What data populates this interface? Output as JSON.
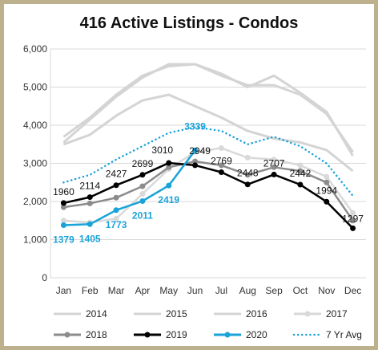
{
  "chart_data": {
    "type": "line",
    "title": "416 Active Listings - Condos",
    "xlabel": "",
    "ylabel": "",
    "categories": [
      "Jan",
      "Feb",
      "Mar",
      "Apr",
      "May",
      "Jun",
      "Jul",
      "Aug",
      "Sep",
      "Oct",
      "Nov",
      "Dec"
    ],
    "ylim": [
      0,
      6000
    ],
    "yticks": [
      0,
      1000,
      2000,
      3000,
      4000,
      5000,
      6000
    ],
    "ytick_labels": [
      "0",
      "1,000",
      "2,000",
      "3,000",
      "4,000",
      "5,000",
      "6,000"
    ],
    "grid": true,
    "legend_position": "bottom",
    "series": [
      {
        "name": "2014",
        "color": "#d4d4d4",
        "style": "solid",
        "markers": false,
        "values": [
          3500,
          3750,
          4250,
          4650,
          4800,
          4500,
          4200,
          3850,
          3650,
          3550,
          3350,
          2800
        ]
      },
      {
        "name": "2015",
        "color": "#d4d4d4",
        "style": "solid",
        "markers": false,
        "values": [
          3700,
          4200,
          4800,
          5300,
          5550,
          5600,
          5300,
          5050,
          5050,
          4800,
          4300,
          3300
        ]
      },
      {
        "name": "2016",
        "color": "#d4d4d4",
        "style": "solid",
        "markers": false,
        "values": [
          3550,
          4150,
          4750,
          5250,
          5600,
          5600,
          5350,
          5000,
          5300,
          4850,
          4350,
          3200
        ]
      },
      {
        "name": "2017",
        "color": "#d9d9d9",
        "style": "solid",
        "markers": true,
        "values": [
          1500,
          1450,
          1550,
          2200,
          2850,
          3300,
          3400,
          3150,
          3100,
          2950,
          2650,
          1700
        ]
      },
      {
        "name": "2018",
        "color": "#8c8c8c",
        "style": "solid",
        "markers": true,
        "values": [
          1850,
          1950,
          2100,
          2400,
          2900,
          3050,
          2950,
          2700,
          2900,
          2800,
          2500,
          1500
        ]
      },
      {
        "name": "2019",
        "color": "#000000",
        "style": "solid",
        "markers": true,
        "values": [
          1960,
          2114,
          2427,
          2699,
          3010,
          2949,
          2769,
          2448,
          2707,
          2442,
          1994,
          1297
        ]
      },
      {
        "name": "2020",
        "color": "#1aa3d9",
        "style": "solid",
        "markers": true,
        "values": [
          1379,
          1405,
          1773,
          2011,
          2419,
          3339,
          null,
          null,
          null,
          null,
          null,
          null
        ]
      },
      {
        "name": "7 Yr Avg",
        "color": "#1aa3d9",
        "style": "dotted",
        "markers": false,
        "values": [
          2500,
          2700,
          3100,
          3450,
          3800,
          3950,
          3850,
          3500,
          3700,
          3450,
          3000,
          2150
        ]
      }
    ],
    "data_labels": [
      {
        "series": "2019",
        "labels": [
          "1960",
          "2114",
          "2427",
          "2699",
          "3010",
          "2949",
          "2769",
          "2448",
          "2707",
          "2442",
          "1994",
          "1297"
        ]
      },
      {
        "series": "2020",
        "labels": [
          "1379",
          "1405",
          "1773",
          "2011",
          "2419",
          "3339"
        ]
      }
    ]
  }
}
